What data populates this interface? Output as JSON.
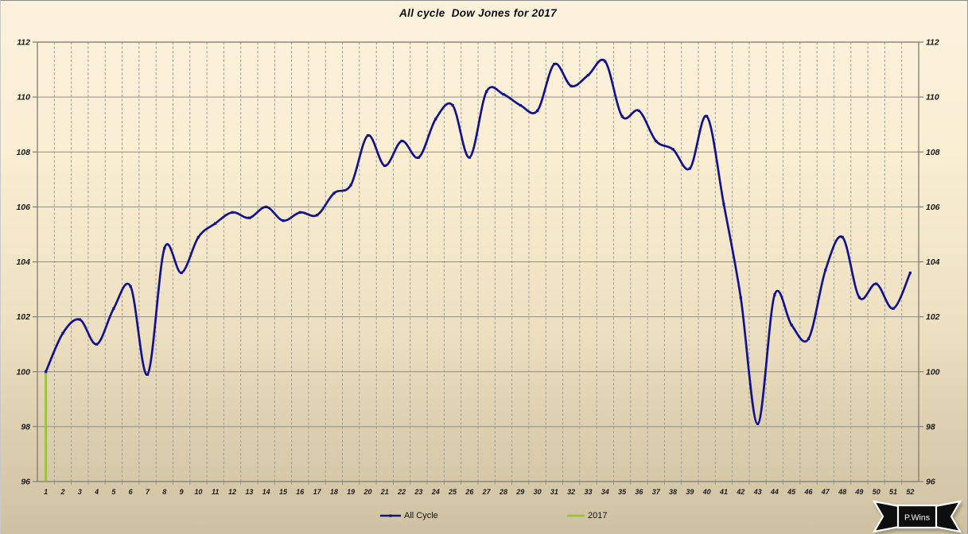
{
  "title": "All cycle  Dow Jones for 2017",
  "legend": {
    "series1_label": "All Cycle",
    "series2_label": "2017"
  },
  "badge": {
    "label": "P.Wins"
  },
  "colors": {
    "all_cycle_line": "#12128e",
    "year_2017_line": "#9cc23e",
    "grid_solid": "#908e85",
    "grid_dashed": "#9e9c93",
    "plot_border": "#7d7b72",
    "axis_text": "#1a1a1a"
  },
  "chart_data": {
    "type": "line",
    "title": "All cycle  Dow Jones for 2017",
    "xlabel": "",
    "ylabel": "",
    "ylim": [
      96,
      112
    ],
    "ytick_step": 2,
    "y_ticks": [
      96,
      98,
      100,
      102,
      104,
      106,
      108,
      110,
      112
    ],
    "x": [
      1,
      2,
      3,
      4,
      5,
      6,
      7,
      8,
      9,
      10,
      11,
      12,
      13,
      14,
      15,
      16,
      17,
      18,
      19,
      20,
      21,
      22,
      23,
      24,
      25,
      26,
      27,
      28,
      29,
      30,
      31,
      32,
      33,
      34,
      35,
      36,
      37,
      38,
      39,
      40,
      41,
      42,
      43,
      44,
      45,
      46,
      47,
      48,
      49,
      50,
      51,
      52
    ],
    "grid": {
      "horizontal": "solid",
      "vertical": "dashed"
    },
    "legend_position": "bottom",
    "series": [
      {
        "name": "All Cycle",
        "color": "#12128e",
        "style": "smooth-line-with-markers",
        "values": [
          100.0,
          101.4,
          101.9,
          101.0,
          102.3,
          103.1,
          99.9,
          104.5,
          103.6,
          104.9,
          105.4,
          105.8,
          105.6,
          106.0,
          105.5,
          105.8,
          105.7,
          106.5,
          106.8,
          108.6,
          107.5,
          108.4,
          107.8,
          109.2,
          109.7,
          107.8,
          110.2,
          110.1,
          109.7,
          109.5,
          111.2,
          110.4,
          110.8,
          111.3,
          109.3,
          109.5,
          108.4,
          108.1,
          107.4,
          109.3,
          106.1,
          102.7,
          98.1,
          102.8,
          101.7,
          101.2,
          103.7,
          104.9,
          102.7,
          103.2,
          102.3,
          103.6
        ]
      },
      {
        "name": "2017",
        "color": "#9cc23e",
        "style": "vertical-segment",
        "week": 1,
        "y_top": 100.0,
        "y_bottom": 96.0
      }
    ]
  }
}
